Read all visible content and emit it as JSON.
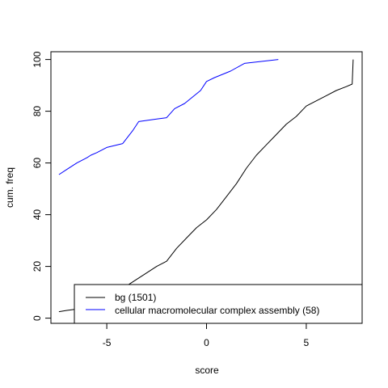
{
  "chart_data": {
    "type": "line",
    "title": "",
    "xlabel": "score",
    "ylabel": "cum. freq",
    "xlim": [
      -7.8,
      7.8
    ],
    "ylim": [
      -2,
      103
    ],
    "xticks": [
      -5,
      0,
      5
    ],
    "yticks": [
      0,
      20,
      40,
      60,
      80,
      100
    ],
    "grid": false,
    "legend_position": "bottom-right",
    "series": [
      {
        "name": "bg (1501)",
        "color": "#000000",
        "x": [
          -7.4,
          -7.0,
          -6.5,
          -6.0,
          -5.5,
          -5.0,
          -4.5,
          -4.0,
          -3.5,
          -3.0,
          -2.5,
          -2.0,
          -1.5,
          -1.0,
          -0.5,
          0.0,
          0.5,
          1.0,
          1.5,
          2.0,
          2.5,
          3.0,
          3.5,
          4.0,
          4.5,
          5.0,
          5.5,
          6.0,
          6.5,
          7.0,
          7.3,
          7.35
        ],
        "y": [
          2.5,
          3,
          3.5,
          5,
          6.5,
          8,
          10,
          12.5,
          15,
          17.5,
          20,
          22,
          27,
          31,
          35,
          38,
          42,
          47,
          52,
          58,
          63,
          67,
          71,
          75,
          78,
          82,
          84,
          86,
          88,
          89.5,
          90.5,
          100
        ]
      },
      {
        "name": "cellular macromolecular complex assembly (58)",
        "color": "#0000ff",
        "x": [
          -7.4,
          -7.0,
          -6.5,
          -6.0,
          -5.8,
          -5.5,
          -5.0,
          -4.2,
          -3.7,
          -3.4,
          -2.5,
          -2.0,
          -1.6,
          -1.1,
          -0.3,
          0.0,
          0.4,
          1.2,
          1.9,
          3.6
        ],
        "y": [
          55.5,
          57.5,
          60,
          62,
          63,
          64,
          66,
          67.5,
          72.5,
          76,
          77,
          77.5,
          81,
          83,
          88,
          91.5,
          93,
          95.5,
          98.5,
          100
        ]
      }
    ]
  }
}
